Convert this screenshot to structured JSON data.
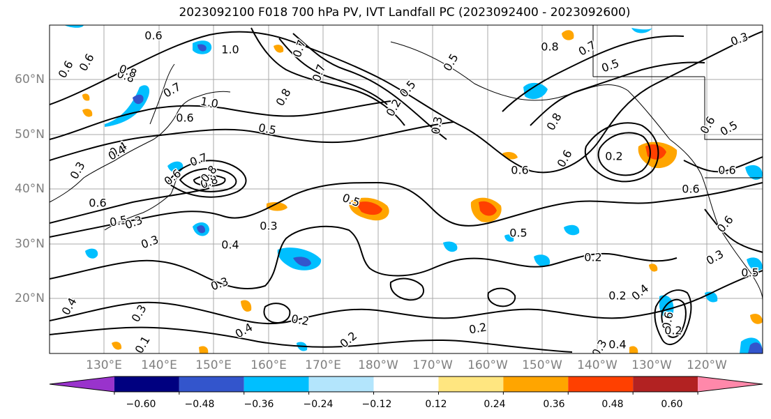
{
  "title": "2023092100 F018 700 hPa PV, IVT Landfall PC (2023092400 - 2023092600)",
  "latitude_labels": [
    "60°N",
    "50°N",
    "40°N",
    "30°N",
    "20°N"
  ],
  "longitude_labels": [
    "130°E",
    "140°E",
    "150°E",
    "160°E",
    "170°E",
    "180°W",
    "170°W",
    "160°W",
    "150°W",
    "140°W",
    "130°W",
    "120°W"
  ],
  "colorbar": {
    "ticks": [
      "−0.60",
      "−0.48",
      "−0.36",
      "−0.24",
      "−0.12",
      "0.12",
      "0.24",
      "0.36",
      "0.48",
      "0.60"
    ],
    "colors": [
      "#9933cc",
      "#000080",
      "#3355cc",
      "#00bfff",
      "#b3e5fc",
      "#ffffff",
      "#ffe680",
      "#ffa500",
      "#ff4000",
      "#b22222",
      "#ff88aa"
    ]
  },
  "contour_labels": [
    "0.6",
    "1.0",
    "0.8",
    "0.6",
    "0.6",
    "0.8",
    "1.0",
    "0.6",
    "0.7",
    "0.5",
    "0.4",
    "0.3",
    "0.6",
    "0.7",
    "0.8",
    "0.6",
    "0.5",
    "0.3",
    "0.4",
    "0.3",
    "0.5",
    "0.3",
    "0.4",
    "0.2",
    "0.3",
    "0.2",
    "0.4",
    "0.2",
    "0.5",
    "0.8",
    "0.5",
    "0.7",
    "0.8",
    "0.6",
    "0.2",
    "0.6",
    "0.5",
    "0.6",
    "0.4",
    "0.6",
    "0.3",
    "0.2",
    "0.6",
    "0.5",
    "0.6",
    "0.2",
    "0.3",
    "0.2",
    "0.6",
    "0.4",
    "0.3",
    "0.1",
    "0.4",
    "0.8",
    "0.7",
    "0.7",
    "0.8",
    "0.5",
    "0.2",
    "0.3",
    "0.5",
    "0.3"
  ]
}
